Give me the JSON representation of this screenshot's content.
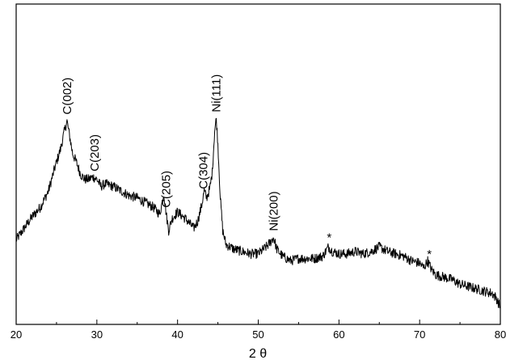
{
  "chart_data": {
    "type": "line",
    "title": "",
    "xlabel": "2 θ",
    "ylabel": "",
    "xlim": [
      20,
      80
    ],
    "ylim": [
      0,
      100
    ],
    "x_ticks": [
      20,
      30,
      40,
      50,
      60,
      70,
      80
    ],
    "x_tick_labels": [
      "20",
      "30",
      "40",
      "50",
      "60",
      "70",
      "80"
    ],
    "y_ticks_labeled": false,
    "grid": false,
    "legend": "none",
    "colors": {
      "line": "#000000",
      "axis": "#000000",
      "background": "#ffffff"
    },
    "series": [
      {
        "x": [
          20.0,
          21.0,
          22.0,
          23.0,
          24.0,
          24.8,
          25.5,
          26.0,
          26.3,
          26.6,
          27.0,
          27.5,
          28.0,
          28.5,
          29.0,
          29.5,
          30.0,
          30.5,
          31.0,
          32.0,
          33.0,
          34.0,
          35.0,
          36.0,
          37.0,
          37.8,
          38.3,
          38.6,
          38.9,
          39.3,
          40.0,
          41.0,
          42.0,
          42.5,
          43.0,
          43.3,
          43.6,
          44.0,
          44.3,
          44.6,
          44.8,
          45.0,
          45.3,
          45.6,
          46.0,
          47.0,
          48.0,
          49.0,
          50.0,
          51.0,
          51.5,
          51.9,
          52.3,
          53.0,
          54.0,
          55.0,
          56.0,
          57.0,
          58.0,
          58.7,
          59.2,
          60.0,
          61.0,
          62.0,
          63.0,
          64.0,
          65.0,
          66.0,
          67.0,
          68.0,
          69.0,
          70.0,
          70.5,
          71.0,
          71.5,
          72.0,
          73.0,
          74.0,
          75.0,
          76.0,
          77.0,
          78.0,
          79.0,
          79.5,
          80.0
        ],
        "y": [
          29,
          34,
          39,
          43,
          50,
          60,
          68,
          76,
          80,
          74,
          66,
          62,
          57,
          55,
          55,
          56,
          55,
          52,
          53,
          52,
          50,
          48,
          47,
          45,
          43,
          40,
          49,
          40,
          33,
          38,
          41,
          38,
          34,
          37,
          44,
          50,
          47,
          51,
          58,
          76,
          81,
          70,
          47,
          33,
          27,
          25,
          24,
          23,
          23,
          26,
          28,
          30,
          25,
          22,
          20,
          21,
          21,
          21,
          22,
          26,
          24,
          23,
          23,
          24,
          23,
          24,
          26,
          24,
          23,
          22,
          20,
          19,
          17,
          20,
          16,
          14,
          13,
          12,
          10,
          9,
          8,
          7,
          6,
          4,
          0
        ]
      }
    ],
    "annotations": [
      {
        "text": "C(002)",
        "x": 26.3
      },
      {
        "text": "C(203)",
        "x": 29.7
      },
      {
        "text": "C(205)",
        "x": 38.6
      },
      {
        "text": "C(304)",
        "x": 43.2
      },
      {
        "text": "Ni(111)",
        "x": 44.8
      },
      {
        "text": "Ni(200)",
        "x": 51.9
      }
    ],
    "markers": [
      {
        "text": "*",
        "x": 58.8
      },
      {
        "text": "*",
        "x": 71.2
      }
    ]
  }
}
